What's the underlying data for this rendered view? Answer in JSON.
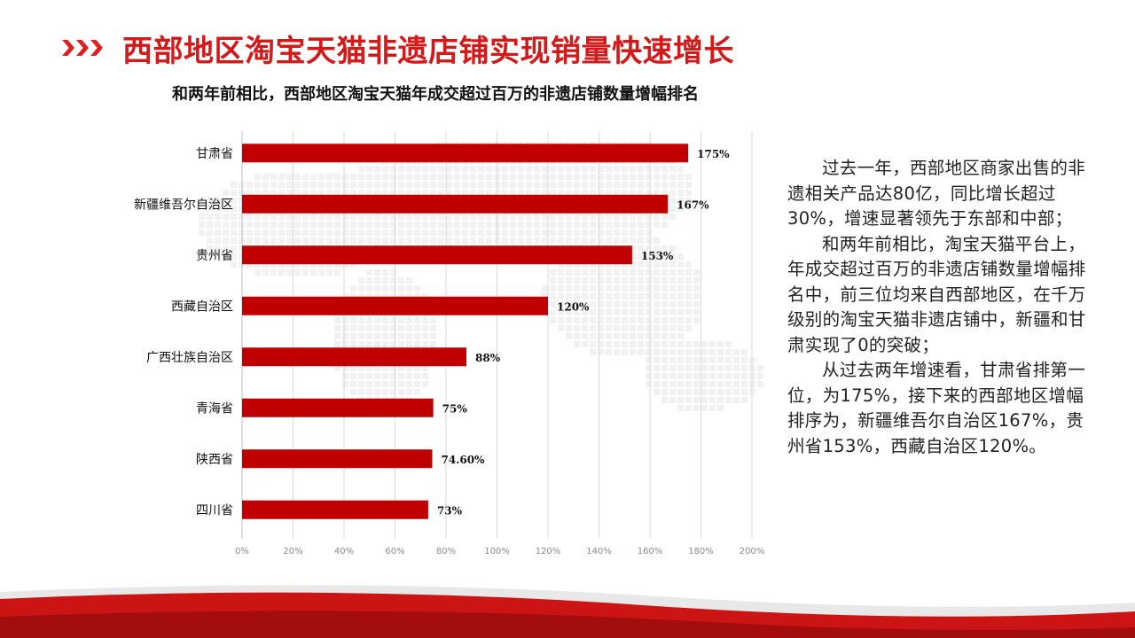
{
  "page": {
    "title": "西部地区淘宝天猫非遗店铺实现销量快速增长",
    "subtitle": "和两年前相比，西部地区淘宝天猫年成交超过百万的非遗店铺数量增幅排名",
    "paragraphs": [
      "过去一年，西部地区商家出售的非遗相关产品达80亿，同比增长超过30%，增速显著领先于东部和中部；",
      "和两年前相比，淘宝天猫平台上，年成交超过百万的非遗店铺数量增幅排名中，前三位均来自西部地区，在千万级别的淘宝天猫非遗店铺中，新疆和甘肃实现了0的突破；",
      "从过去两年增速看，甘肃省排第一位，为175%，接下来的西部地区增幅排序为，新疆维吾尔自治区167%，贵州省153%，西藏自治区120%。"
    ],
    "accent_color": "#d21a1a"
  },
  "chart_data": {
    "type": "bar",
    "orientation": "horizontal",
    "categories": [
      "甘肃省",
      "新疆维吾尔自治区",
      "贵州省",
      "西藏自治区",
      "广西壮族自治区",
      "青海省",
      "陕西省",
      "四川省"
    ],
    "values": [
      175,
      167,
      153,
      120,
      88,
      75,
      74.6,
      73
    ],
    "data_labels": [
      "175%",
      "167%",
      "153%",
      "120%",
      "88%",
      "75%",
      "74.60%",
      "73%"
    ],
    "x_ticks": [
      "0%",
      "20%",
      "40%",
      "60%",
      "80%",
      "100%",
      "120%",
      "140%",
      "160%",
      "180%",
      "200%"
    ],
    "xlim": [
      0,
      200
    ],
    "grid": true,
    "bar_color": "#c00000"
  }
}
